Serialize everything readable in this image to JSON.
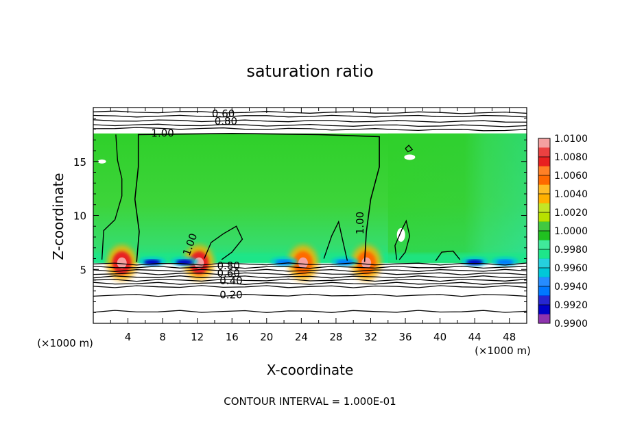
{
  "chart_data": {
    "type": "heatmap",
    "title": "saturation ratio",
    "xlabel": "X-coordinate",
    "ylabel": "Z-coordinate",
    "x_unit_left": "(×1000 m)",
    "x_unit_right": "(×1000 m)",
    "footer": "CONTOUR INTERVAL = 1.000E-01",
    "xlim": [
      0,
      50
    ],
    "ylim": [
      0,
      20
    ],
    "x_ticks": [
      "4",
      "8",
      "12",
      "16",
      "20",
      "24",
      "28",
      "32",
      "36",
      "40",
      "44",
      "48"
    ],
    "y_ticks": [
      "5",
      "10",
      "15"
    ],
    "colorbar": {
      "levels": [
        "1.0100",
        "1.0080",
        "1.0060",
        "1.0040",
        "1.0020",
        "1.0000",
        "0.9980",
        "0.9960",
        "0.9940",
        "0.9920",
        "0.9900"
      ],
      "colors": [
        "#f4a0a0",
        "#e82020",
        "#ff6a00",
        "#ffb000",
        "#b8e000",
        "#20c020",
        "#1ee68a",
        "#00c8d8",
        "#0078ff",
        "#0000c8",
        "#7a10a0"
      ]
    },
    "contour_labels": [
      {
        "text": "0.60",
        "x": 15.0,
        "y": 19.4
      },
      {
        "text": "0.80",
        "x": 15.3,
        "y": 18.7
      },
      {
        "text": "1.00",
        "x": 8.0,
        "y": 17.6
      },
      {
        "text": "1.00",
        "x": 30.8,
        "y": 9.3
      },
      {
        "text": "1.00",
        "x": 11.2,
        "y": 7.3
      },
      {
        "text": "0.80",
        "x": 15.6,
        "y": 5.3
      },
      {
        "text": "0.60",
        "x": 15.6,
        "y": 4.6
      },
      {
        "text": "0.40",
        "x": 15.9,
        "y": 3.9
      },
      {
        "text": "0.20",
        "x": 15.9,
        "y": 2.6
      }
    ],
    "hotspots": [
      {
        "x": 3.3,
        "y": 5.9,
        "value": 1.008
      },
      {
        "x": 12.2,
        "y": 6.1,
        "value": 1.008
      },
      {
        "x": 24.2,
        "y": 5.9,
        "value": 1.006
      },
      {
        "x": 31.5,
        "y": 5.8,
        "value": 1.006
      },
      {
        "x": 6.8,
        "y": 5.8,
        "value": 0.992
      },
      {
        "x": 10.5,
        "y": 5.8,
        "value": 0.992
      },
      {
        "x": 22.0,
        "y": 5.8,
        "value": 0.994
      },
      {
        "x": 29.0,
        "y": 5.8,
        "value": 0.994
      },
      {
        "x": 44.0,
        "y": 5.8,
        "value": 0.992
      },
      {
        "x": 47.5,
        "y": 5.8,
        "value": 0.993
      }
    ]
  }
}
